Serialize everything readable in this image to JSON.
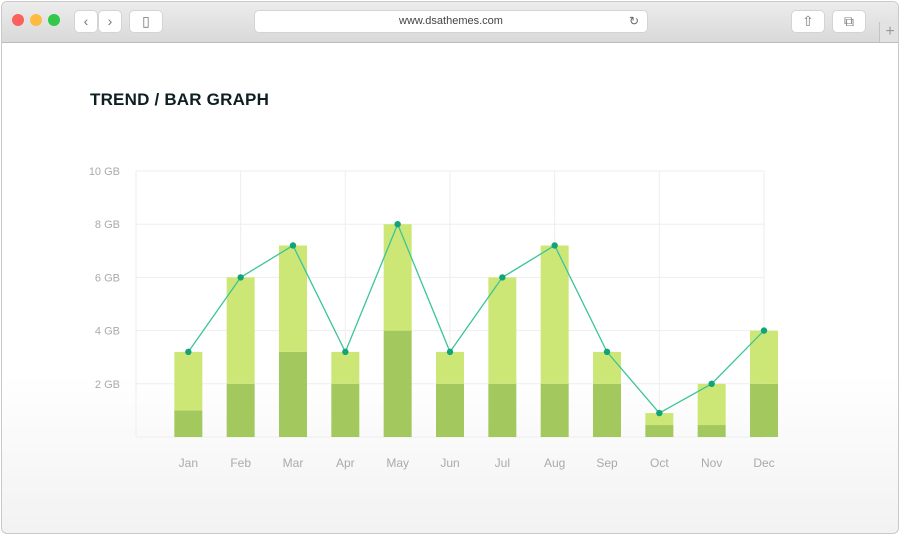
{
  "browser": {
    "url": "www.dsathemes.com",
    "icons": [
      "close-dot",
      "minimize-dot",
      "maximize-dot",
      "back-icon",
      "forward-icon",
      "sidebar-icon",
      "reload-icon",
      "share-icon",
      "tabs-icon",
      "new-tab-icon"
    ]
  },
  "page": {
    "title": "TREND / BAR GRAPH"
  },
  "chart_data": {
    "type": "bar",
    "stacked": true,
    "title": "TREND / BAR GRAPH",
    "categories": [
      "Jan",
      "Feb",
      "Mar",
      "Apr",
      "May",
      "Jun",
      "Jul",
      "Aug",
      "Sep",
      "Oct",
      "Nov",
      "Dec"
    ],
    "series": [
      {
        "values": [
          1.0,
          2,
          3.2,
          2,
          4,
          2,
          2,
          2,
          2,
          0.45,
          0.45,
          2
        ],
        "color": "#a3c95e"
      },
      {
        "values": [
          2.2,
          4,
          4,
          1.2,
          4,
          1.2,
          4,
          5.2,
          1.2,
          0.45,
          1.55,
          2
        ],
        "color": "#cde777"
      }
    ],
    "line": {
      "type": "line",
      "values": [
        3.2,
        6,
        7.2,
        3.2,
        8,
        3.2,
        6,
        7.2,
        3.2,
        0.9,
        2,
        4
      ],
      "color": "#3cc49a",
      "marker_color": "#12a37a"
    },
    "ylim": [
      0,
      10
    ],
    "yticks": [
      "2 GB",
      "4 GB",
      "6 GB",
      "8 GB",
      "10 GB"
    ],
    "ytick_values": [
      2,
      4,
      6,
      8,
      10
    ],
    "grid": true,
    "xlabel": "",
    "ylabel": ""
  }
}
